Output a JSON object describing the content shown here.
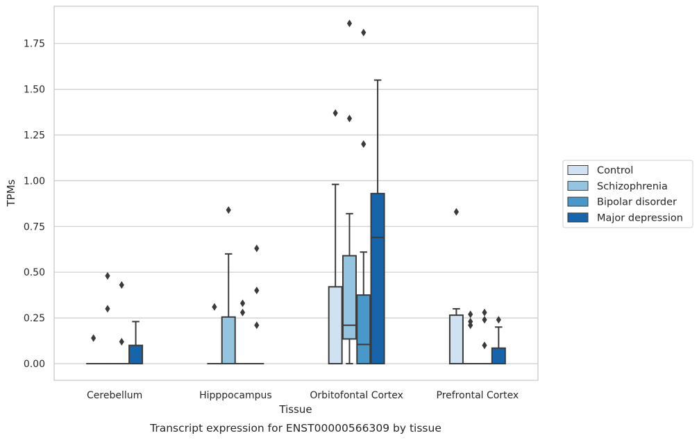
{
  "caption": "Transcript expression for ENST00000566309 by tissue",
  "chart_data": {
    "type": "box",
    "title": "",
    "xlabel": "Tissue",
    "ylabel": "TPMs",
    "ylim": [
      -0.09,
      1.95
    ],
    "yticks": [
      "0.00",
      "0.25",
      "0.50",
      "0.75",
      "1.00",
      "1.25",
      "1.50",
      "1.75"
    ],
    "grid": "horizontal",
    "legend_position": "right",
    "categories": [
      "Cerebellum",
      "Hipppocampus",
      "Orbitofontal Cortex",
      "Prefrontal Cortex"
    ],
    "series": [
      {
        "name": "Control",
        "color": "#d0e1f2",
        "boxes": [
          {
            "q1": 0,
            "median": 0,
            "q3": 0,
            "whisker_low": 0,
            "whisker_high": 0,
            "outliers": [
              0.14
            ]
          },
          {
            "q1": 0,
            "median": 0,
            "q3": 0,
            "whisker_low": 0,
            "whisker_high": 0,
            "outliers": [
              0.31
            ]
          },
          {
            "q1": 0,
            "median": 0,
            "q3": 0.42,
            "whisker_low": 0,
            "whisker_high": 0.98,
            "outliers": [
              1.37
            ]
          },
          {
            "q1": 0,
            "median": 0,
            "q3": 0.265,
            "whisker_low": 0,
            "whisker_high": 0.3,
            "outliers": [
              0.83
            ]
          }
        ]
      },
      {
        "name": "Schizophrenia",
        "color": "#94c4df",
        "boxes": [
          {
            "q1": 0,
            "median": 0,
            "q3": 0,
            "whisker_low": 0,
            "whisker_high": 0,
            "outliers": [
              0.3,
              0.48
            ]
          },
          {
            "q1": 0,
            "median": 0,
            "q3": 0.255,
            "whisker_low": 0,
            "whisker_high": 0.6,
            "outliers": [
              0.84
            ]
          },
          {
            "q1": 0.135,
            "median": 0.21,
            "q3": 0.59,
            "whisker_low": 0,
            "whisker_high": 0.82,
            "outliers": [
              1.34,
              1.86
            ]
          },
          {
            "q1": 0,
            "median": 0,
            "q3": 0,
            "whisker_low": 0,
            "whisker_high": 0,
            "outliers": [
              0.21,
              0.23,
              0.27
            ]
          }
        ]
      },
      {
        "name": "Bipolar disorder",
        "color": "#4a98c9",
        "boxes": [
          {
            "q1": 0,
            "median": 0,
            "q3": 0,
            "whisker_low": 0,
            "whisker_high": 0,
            "outliers": [
              0.12,
              0.43
            ]
          },
          {
            "q1": 0,
            "median": 0,
            "q3": 0,
            "whisker_low": 0,
            "whisker_high": 0,
            "outliers": [
              0.28,
              0.33
            ]
          },
          {
            "q1": 0,
            "median": 0.105,
            "q3": 0.375,
            "whisker_low": 0,
            "whisker_high": 0.61,
            "outliers": [
              1.2,
              1.81
            ]
          },
          {
            "q1": 0,
            "median": 0,
            "q3": 0,
            "whisker_low": 0,
            "whisker_high": 0,
            "outliers": [
              0.1,
              0.24,
              0.28
            ]
          }
        ]
      },
      {
        "name": "Major depression",
        "color": "#1764ab",
        "boxes": [
          {
            "q1": 0,
            "median": 0,
            "q3": 0.1,
            "whisker_low": 0,
            "whisker_high": 0.23,
            "outliers": []
          },
          {
            "q1": 0,
            "median": 0,
            "q3": 0,
            "whisker_low": 0,
            "whisker_high": 0,
            "outliers": [
              0.21,
              0.4,
              0.63
            ]
          },
          {
            "q1": 0,
            "median": 0.69,
            "q3": 0.93,
            "whisker_low": 0,
            "whisker_high": 1.55,
            "outliers": []
          },
          {
            "q1": 0,
            "median": 0,
            "q3": 0.085,
            "whisker_low": 0,
            "whisker_high": 0.2,
            "outliers": [
              0.24
            ]
          }
        ]
      }
    ]
  }
}
